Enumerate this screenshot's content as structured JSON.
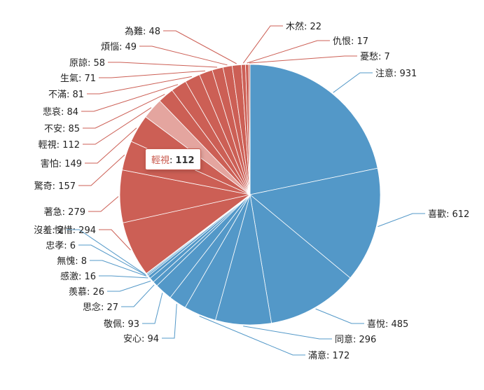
{
  "chart_data": {
    "type": "pie",
    "colors": {
      "positive": "#5398c8",
      "negative": "#cc5f55"
    },
    "slices": [
      {
        "name": "注意",
        "value": 931,
        "group": "positive"
      },
      {
        "name": "喜歡",
        "value": 612,
        "group": "positive"
      },
      {
        "name": "喜悅",
        "value": 485,
        "group": "positive"
      },
      {
        "name": "同意",
        "value": 296,
        "group": "positive"
      },
      {
        "name": "滿意",
        "value": 172,
        "group": "positive"
      },
      {
        "name": "安心",
        "value": 94,
        "group": "positive"
      },
      {
        "name": "敬佩",
        "value": 93,
        "group": "positive"
      },
      {
        "name": "思念",
        "value": 27,
        "group": "positive"
      },
      {
        "name": "羨慕",
        "value": 26,
        "group": "positive"
      },
      {
        "name": "感激",
        "value": 16,
        "group": "positive"
      },
      {
        "name": "無愧",
        "value": 8,
        "group": "positive"
      },
      {
        "name": "忠孝",
        "value": 6,
        "group": "positive"
      },
      {
        "name": "沒羞",
        "value": 2,
        "group": "positive"
      },
      {
        "name": "惋惜",
        "value": 294,
        "group": "negative"
      },
      {
        "name": "著急",
        "value": 279,
        "group": "negative"
      },
      {
        "name": "驚奇",
        "value": 157,
        "group": "negative"
      },
      {
        "name": "害怕",
        "value": 149,
        "group": "negative"
      },
      {
        "name": "輕視",
        "value": 112,
        "group": "negative",
        "highlighted": true
      },
      {
        "name": "不安",
        "value": 85,
        "group": "negative"
      },
      {
        "name": "悲哀",
        "value": 84,
        "group": "negative"
      },
      {
        "name": "不滿",
        "value": 81,
        "group": "negative"
      },
      {
        "name": "生氣",
        "value": 71,
        "group": "negative"
      },
      {
        "name": "原諒",
        "value": 58,
        "group": "negative"
      },
      {
        "name": "煩惱",
        "value": 49,
        "group": "negative"
      },
      {
        "name": "為難",
        "value": 48,
        "group": "negative"
      },
      {
        "name": "木然",
        "value": 22,
        "group": "negative"
      },
      {
        "name": "仇恨",
        "value": 17,
        "group": "negative"
      },
      {
        "name": "憂愁",
        "value": 7,
        "group": "negative"
      }
    ]
  },
  "tooltip": {
    "name": "輕視",
    "separator": ":",
    "value": "112"
  }
}
